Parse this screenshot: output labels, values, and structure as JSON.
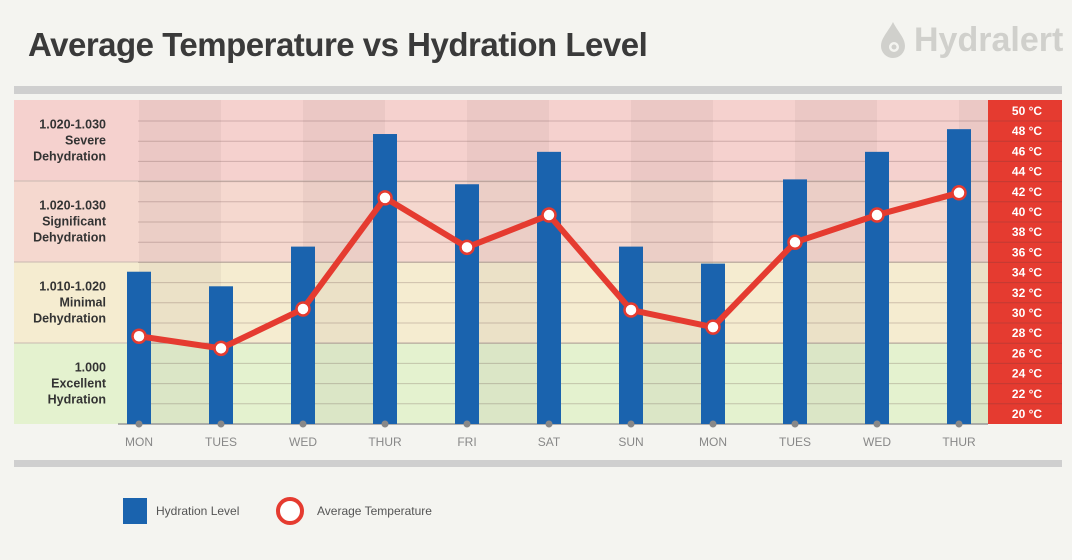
{
  "chart_data": {
    "type": "bar+line",
    "title": "Average Temperature vs Hydration Level",
    "categories": [
      "MON",
      "TUES",
      "WED",
      "THUR",
      "FRI",
      "SAT",
      "SUN",
      "MON",
      "TUES",
      "WED",
      "THUR"
    ],
    "series": [
      {
        "name": "Hydration Level",
        "type": "bar",
        "axis": "left-bands",
        "color": "#1a63ae",
        "values": [
          1.88,
          1.7,
          2.19,
          3.58,
          2.96,
          3.36,
          2.19,
          1.98,
          3.02,
          3.36,
          3.64
        ]
      },
      {
        "name": "Average Temperature",
        "type": "line",
        "axis": "right",
        "unit": "°C",
        "color": "#e53b30",
        "values": [
          27.7,
          26.5,
          30.4,
          41.4,
          36.5,
          39.7,
          30.3,
          28.6,
          37.0,
          39.7,
          41.9
        ]
      }
    ],
    "left_axis": {
      "bands": [
        {
          "range": "1.000",
          "label": "Excellent Hydration",
          "lines": [
            "1.000",
            "Excellent",
            "Hydration"
          ],
          "color": "#e4f2cf"
        },
        {
          "range": "1.010-1.020",
          "label": "Minimal Dehydration",
          "lines": [
            "1.010-1.020",
            "Minimal",
            "Dehydration"
          ],
          "color": "#f5ecd0"
        },
        {
          "range": "1.020-1.030",
          "label": "Significant Dehydration",
          "lines": [
            "1.020-1.030",
            "Significant",
            "Dehydration"
          ],
          "color": "#f5d8cf"
        },
        {
          "range": "1.020-1.030",
          "label": "Severe Dehydration",
          "lines": [
            "1.020-1.030",
            "Severe",
            "Dehydration"
          ],
          "color": "#f5d1ce"
        }
      ],
      "ylim": [
        0,
        4
      ]
    },
    "right_axis": {
      "ylim": [
        19,
        51
      ],
      "ticks": [
        "20 °C",
        "22 °C",
        "24 °C",
        "26 °C",
        "28 °C",
        "30 °C",
        "32 °C",
        "34 °C",
        "36 °C",
        "38 °C",
        "40 °C",
        "42 °C",
        "44 °C",
        "46 °C",
        "48 °C",
        "50 °C"
      ],
      "tick_values": [
        20,
        22,
        24,
        26,
        28,
        30,
        32,
        34,
        36,
        38,
        40,
        42,
        44,
        46,
        48,
        50
      ],
      "color": "#e53b30"
    },
    "grid": true,
    "legend": {
      "placement": "bottom-left",
      "entries": [
        "Hydration Level",
        "Average Temperature"
      ]
    }
  },
  "brand": {
    "name": "Hydralert",
    "icon": "water-drop-icon"
  }
}
